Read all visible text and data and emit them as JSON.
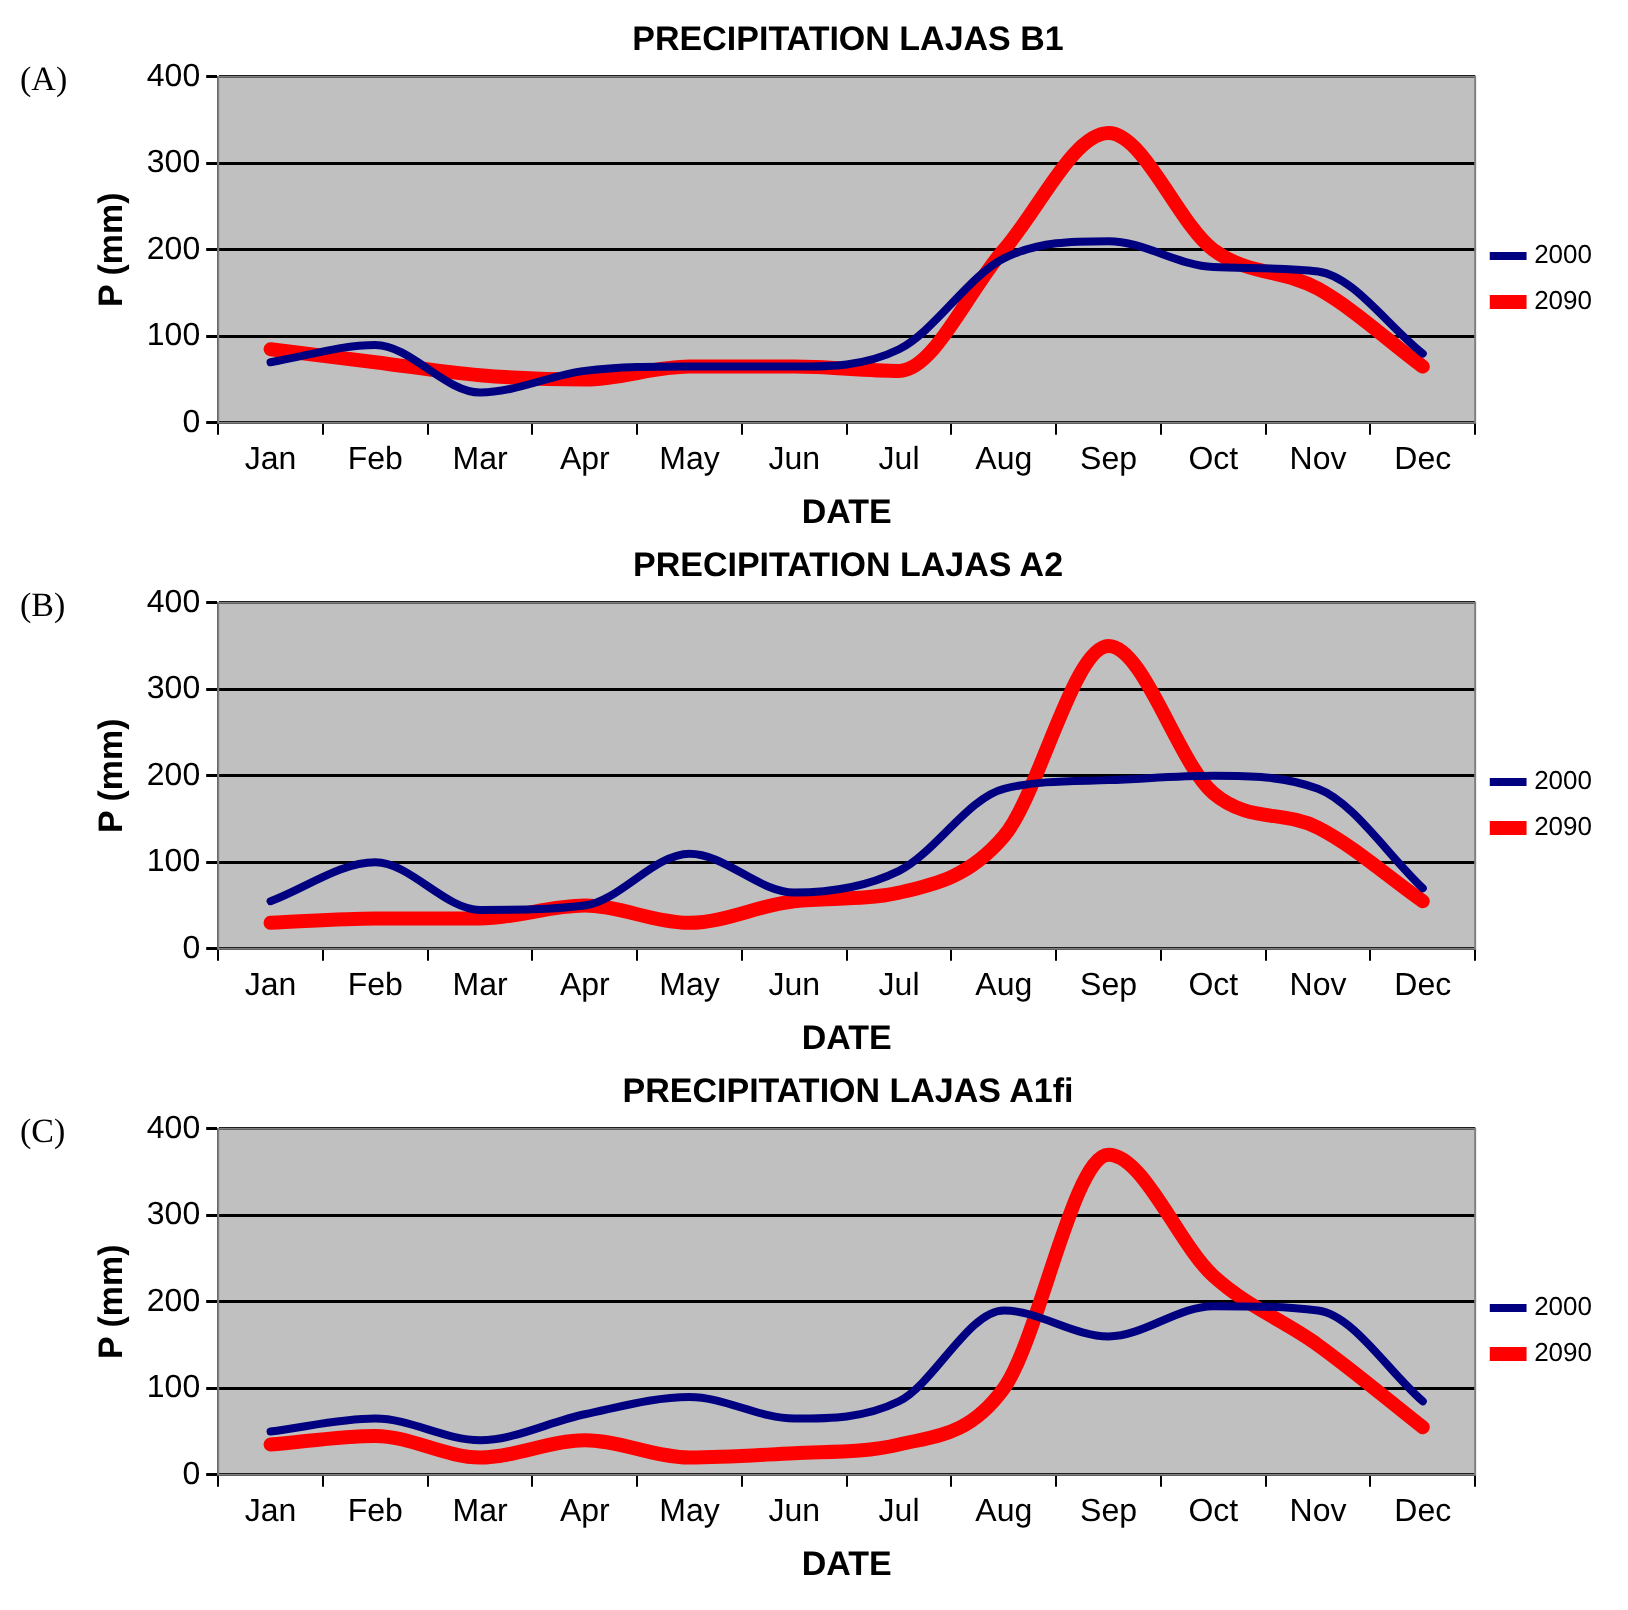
{
  "chart_data": [
    {
      "type": "line",
      "title": "PRECIPITATION LAJAS B1",
      "xlabel": "DATE",
      "ylabel": "P (mm)",
      "annotations": [
        "(A)"
      ],
      "categories": [
        "Jan",
        "Feb",
        "Mar",
        "Apr",
        "May",
        "Jun",
        "Jul",
        "Aug",
        "Sep",
        "Oct",
        "Nov",
        "Dec"
      ],
      "series": [
        {
          "name": "2000",
          "color": "#000080",
          "values": [
            70,
            90,
            35,
            60,
            65,
            65,
            85,
            190,
            210,
            180,
            175,
            80
          ]
        },
        {
          "name": "2090",
          "color": "#ff0000",
          "values": [
            85,
            70,
            55,
            50,
            65,
            65,
            60,
            200,
            335,
            200,
            155,
            65
          ]
        }
      ],
      "ylim": [
        0,
        400
      ],
      "yticks": [
        0,
        100,
        200,
        300,
        400
      ],
      "grid": "y",
      "legend": "right",
      "marker": "none",
      "line_style": "solid"
    },
    {
      "type": "line",
      "title": "PRECIPITATION LAJAS A2",
      "xlabel": "DATE",
      "ylabel": "P (mm)",
      "annotations": [
        "(B)"
      ],
      "categories": [
        "Jan",
        "Feb",
        "Mar",
        "Apr",
        "May",
        "Jun",
        "Jul",
        "Aug",
        "Sep",
        "Oct",
        "Nov",
        "Dec"
      ],
      "series": [
        {
          "name": "2000",
          "color": "#000080",
          "values": [
            55,
            100,
            45,
            50,
            110,
            65,
            90,
            185,
            195,
            200,
            185,
            70
          ]
        },
        {
          "name": "2090",
          "color": "#ff0000",
          "values": [
            30,
            35,
            35,
            50,
            30,
            55,
            65,
            130,
            350,
            180,
            140,
            55
          ]
        }
      ],
      "ylim": [
        0,
        400
      ],
      "yticks": [
        0,
        100,
        200,
        300,
        400
      ],
      "grid": "y",
      "legend": "right",
      "marker": "none",
      "line_style": "solid"
    },
    {
      "type": "line",
      "title": "PRECIPITATION LAJAS A1fi",
      "xlabel": "DATE",
      "ylabel": "P (mm)",
      "annotations": [
        "(C)"
      ],
      "categories": [
        "Jan",
        "Feb",
        "Mar",
        "Apr",
        "May",
        "Jun",
        "Jul",
        "Aug",
        "Sep",
        "Oct",
        "Nov",
        "Dec"
      ],
      "series": [
        {
          "name": "2000",
          "color": "#000080",
          "values": [
            50,
            65,
            40,
            70,
            90,
            65,
            85,
            190,
            160,
            195,
            190,
            85
          ]
        },
        {
          "name": "2090",
          "color": "#ff0000",
          "values": [
            35,
            45,
            20,
            40,
            20,
            25,
            35,
            100,
            370,
            230,
            150,
            55
          ]
        }
      ],
      "ylim": [
        0,
        400
      ],
      "yticks": [
        0,
        100,
        200,
        300,
        400
      ],
      "grid": "y",
      "legend": "right",
      "marker": "none",
      "line_style": "solid"
    }
  ]
}
